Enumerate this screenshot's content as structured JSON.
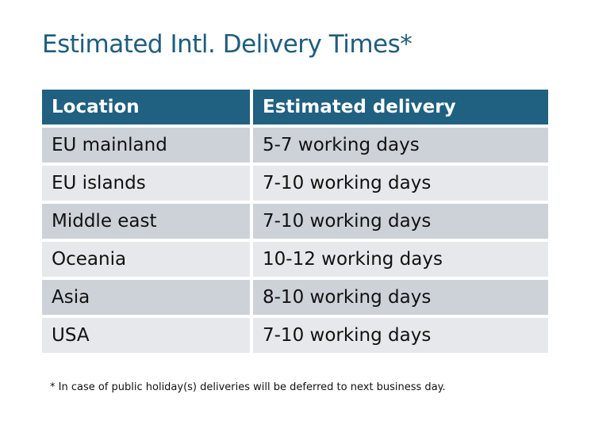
{
  "title": "Estimated Intl. Delivery Times*",
  "colors": {
    "title": "#1f5d7e",
    "header_bg": "#206080",
    "row_odd": "#cdd2d9",
    "row_even": "#e6e8eb"
  },
  "table": {
    "headers": [
      "Location",
      "Estimated delivery"
    ],
    "rows": [
      [
        "EU mainland",
        "5-7 working days"
      ],
      [
        "EU islands",
        "7-10 working days"
      ],
      [
        "Middle east",
        "7-10 working days"
      ],
      [
        "Oceania",
        "10-12 working days"
      ],
      [
        "Asia",
        "8-10 working days"
      ],
      [
        "USA",
        "7-10 working days"
      ]
    ]
  },
  "footnote": "* In case of public holiday(s) deliveries will be deferred to next business day."
}
